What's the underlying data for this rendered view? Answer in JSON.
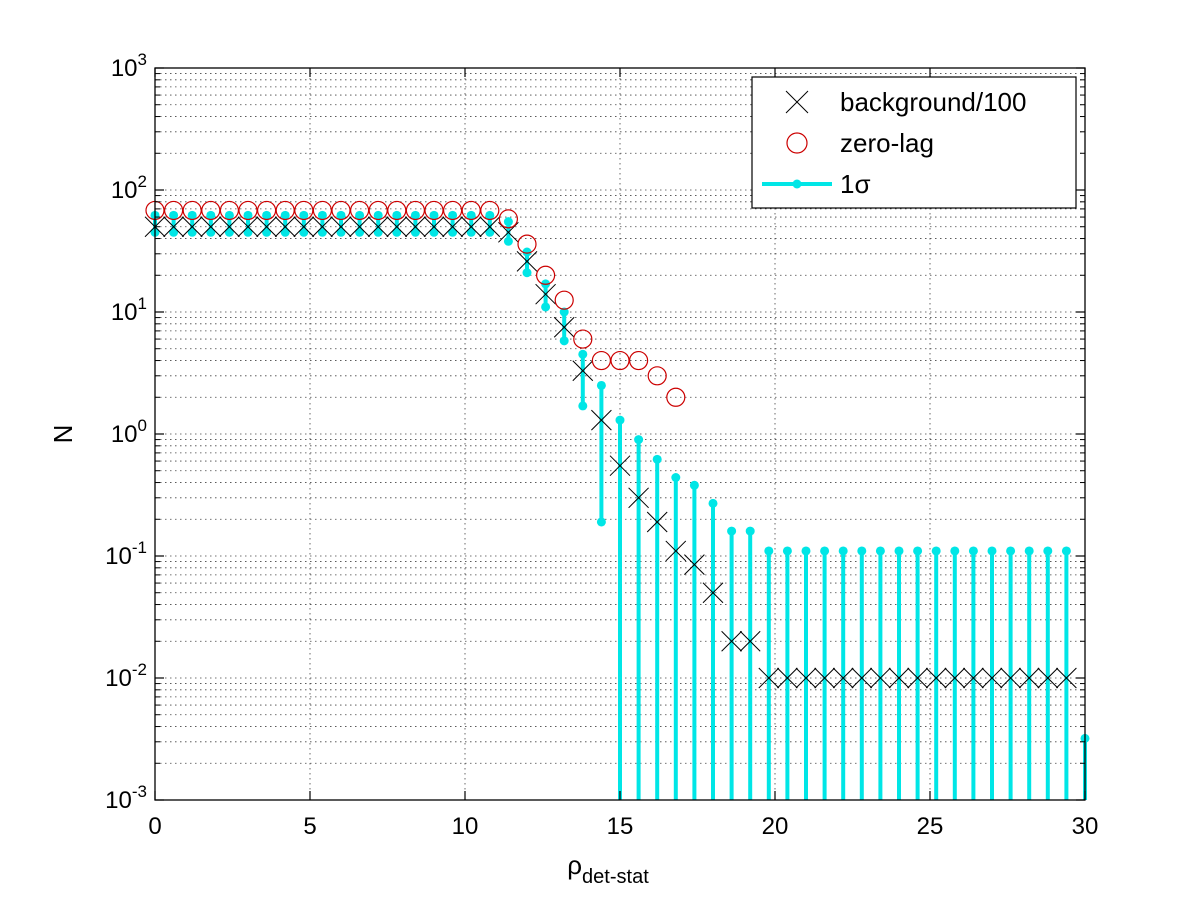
{
  "chart_data": {
    "type": "scatter",
    "title": "",
    "xlabel": "ρ",
    "xlabel_subscript": "det-stat",
    "ylabel": "N",
    "xlim": [
      0,
      30
    ],
    "ylim": [
      0.001,
      1000
    ],
    "yscale": "log",
    "grid": true,
    "grid_minor_y": true,
    "legend_position": "top-right",
    "x_ticks": [
      0,
      5,
      10,
      15,
      20,
      25,
      30
    ],
    "x_tick_labels": [
      "0",
      "5",
      "10",
      "15",
      "20",
      "25",
      "30"
    ],
    "y_ticks": [
      0.001,
      0.01,
      0.1,
      1,
      10,
      100,
      1000
    ],
    "y_tick_labels": [
      {
        "base": "10",
        "exp": "-3"
      },
      {
        "base": "10",
        "exp": "-2"
      },
      {
        "base": "10",
        "exp": "-1"
      },
      {
        "base": "10",
        "exp": "0"
      },
      {
        "base": "10",
        "exp": "1"
      },
      {
        "base": "10",
        "exp": "2"
      },
      {
        "base": "10",
        "exp": "3"
      }
    ],
    "series": [
      {
        "name": "background/100",
        "marker": "x",
        "color": "#000000",
        "x": [
          0,
          0.6,
          1.2,
          1.8,
          2.4,
          3.0,
          3.6,
          4.2,
          4.8,
          5.4,
          6.0,
          6.6,
          7.2,
          7.8,
          8.4,
          9.0,
          9.6,
          10.2,
          10.8,
          11.4,
          12.0,
          12.6,
          13.2,
          13.8,
          14.4,
          15.0,
          15.6,
          16.2,
          16.8,
          17.4,
          18.0,
          18.6,
          19.2,
          19.8,
          20.4,
          21.0,
          21.6,
          22.2,
          22.8,
          23.4,
          24.0,
          24.6,
          25.2,
          25.8,
          26.4,
          27.0,
          27.6,
          28.2,
          28.8,
          29.4
        ],
        "y": [
          50,
          50,
          50,
          50,
          50,
          50,
          50,
          50,
          50,
          50,
          50,
          50,
          50,
          50,
          50,
          50,
          50,
          50,
          50,
          45,
          26,
          14,
          7.5,
          3.3,
          1.3,
          0.55,
          0.3,
          0.19,
          0.11,
          0.085,
          0.05,
          0.02,
          0.02,
          0.01,
          0.01,
          0.01,
          0.01,
          0.01,
          0.01,
          0.01,
          0.01,
          0.01,
          0.01,
          0.01,
          0.01,
          0.01,
          0.01,
          0.01,
          0.01,
          0.01
        ]
      },
      {
        "name": "zero-lag",
        "marker": "o",
        "color": "#cc0000",
        "x": [
          0,
          0.6,
          1.2,
          1.8,
          2.4,
          3.0,
          3.6,
          4.2,
          4.8,
          5.4,
          6.0,
          6.6,
          7.2,
          7.8,
          8.4,
          9.0,
          9.6,
          10.2,
          10.8,
          11.4,
          12.0,
          12.6,
          13.2,
          13.8,
          14.4,
          15.0,
          15.6,
          16.2,
          16.8
        ],
        "y": [
          68,
          68,
          68,
          68,
          68,
          68,
          68,
          68,
          68,
          68,
          68,
          68,
          68,
          68,
          68,
          68,
          68,
          68,
          68,
          58,
          36,
          20,
          12.5,
          6,
          4,
          4,
          4,
          3,
          2
        ]
      },
      {
        "name": "1σ",
        "marker": "errorbar",
        "color": "#00e6e6",
        "x": [
          0,
          0.6,
          1.2,
          1.8,
          2.4,
          3.0,
          3.6,
          4.2,
          4.8,
          5.4,
          6.0,
          6.6,
          7.2,
          7.8,
          8.4,
          9.0,
          9.6,
          10.2,
          10.8,
          11.4,
          12.0,
          12.6,
          13.2,
          13.8,
          14.4,
          15.0,
          15.6,
          16.2,
          16.8,
          17.4,
          18.0,
          18.6,
          19.2,
          19.8,
          20.4,
          21.0,
          21.6,
          22.2,
          22.8,
          23.4,
          24.0,
          24.6,
          25.2,
          25.8,
          26.4,
          27.0,
          27.6,
          28.2,
          28.8,
          29.4,
          30.0
        ],
        "y_high": [
          62,
          62,
          62,
          62,
          62,
          62,
          62,
          62,
          62,
          62,
          62,
          62,
          62,
          62,
          62,
          62,
          62,
          62,
          62,
          55,
          31,
          17,
          10,
          4.5,
          2.5,
          1.3,
          0.9,
          0.62,
          0.44,
          0.38,
          0.27,
          0.16,
          0.16,
          0.11,
          0.11,
          0.11,
          0.11,
          0.11,
          0.11,
          0.11,
          0.11,
          0.11,
          0.11,
          0.11,
          0.11,
          0.11,
          0.11,
          0.11,
          0.11,
          0.11,
          0.0032
        ],
        "y_low": [
          45,
          45,
          45,
          45,
          45,
          45,
          45,
          45,
          45,
          45,
          45,
          45,
          45,
          45,
          45,
          45,
          45,
          45,
          45,
          38,
          21,
          11,
          5.8,
          1.7,
          0.19,
          0.001,
          0.001,
          0.001,
          0.001,
          0.001,
          0.001,
          0.001,
          0.001,
          0.001,
          0.001,
          0.001,
          0.001,
          0.001,
          0.001,
          0.001,
          0.001,
          0.001,
          0.001,
          0.001,
          0.001,
          0.001,
          0.001,
          0.001,
          0.001,
          0.001,
          0.001
        ]
      }
    ]
  }
}
